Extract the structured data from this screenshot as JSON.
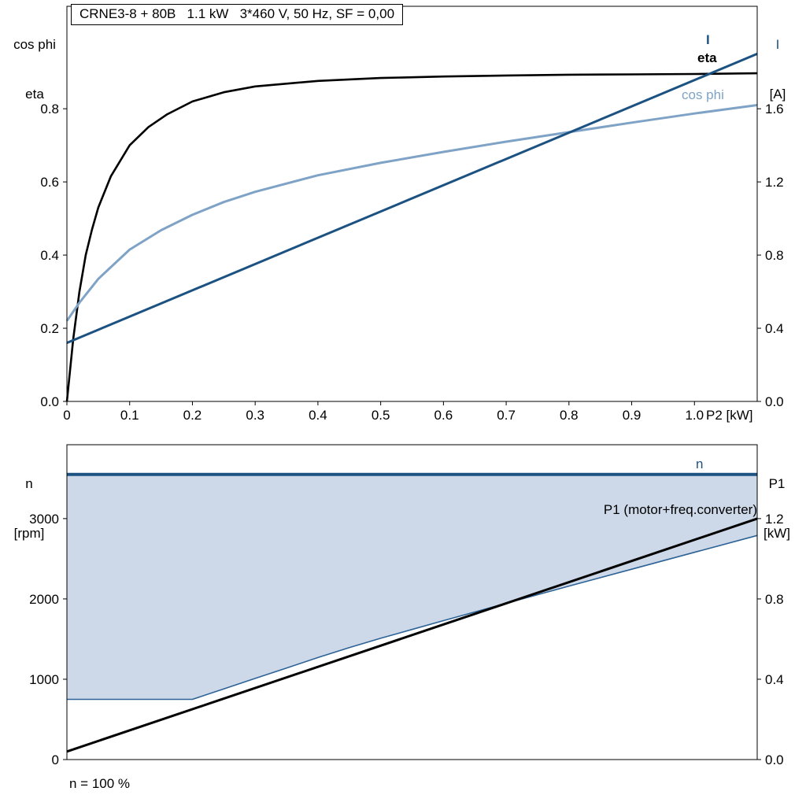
{
  "header": {
    "title_box": "CRNE3-8 + 80B   1.1 kW   3*460 V, 50 Hz, SF = 0,00"
  },
  "colors": {
    "dark_blue": "#1c5282",
    "light_blue": "#7fa3c6",
    "fill_blue": "#cdd9e8",
    "black": "#000000"
  },
  "labels": {
    "top_left_line1": "cos phi",
    "top_left_line2": "eta",
    "top_right_line1": "I",
    "top_right_line2": "[A]",
    "x_axis_label": "P2 [kW]",
    "curve_I": "I",
    "curve_eta": "eta",
    "curve_cosphi": "cos phi",
    "bottom_left_line1": "n",
    "bottom_left_line2": "[rpm]",
    "bottom_right_line1": "P1",
    "bottom_right_line2": "[kW]",
    "curve_n": "n",
    "curve_P1": "P1 (motor+freq.converter)",
    "footnote": "n = 100 %"
  },
  "chart_data": [
    {
      "type": "line",
      "title": "CRNE3-8 + 80B   1.1 kW   3*460 V, 50 Hz, SF = 0,00",
      "xlabel": "P2 [kW]",
      "ylabel_left": "cos phi / eta",
      "ylabel_right": "I [A]",
      "xlim": [
        0,
        1.1
      ],
      "ylim_left": [
        0,
        1.08
      ],
      "ylim_right": [
        0,
        2.16
      ],
      "grid": false,
      "legend_position": "curve-end-labels",
      "x_ticks": [
        {
          "v": 0,
          "t": "0"
        },
        {
          "v": 0.1,
          "t": "0.1"
        },
        {
          "v": 0.2,
          "t": "0.2"
        },
        {
          "v": 0.3,
          "t": "0.3"
        },
        {
          "v": 0.4,
          "t": "0.4"
        },
        {
          "v": 0.5,
          "t": "0.5"
        },
        {
          "v": 0.6,
          "t": "0.6"
        },
        {
          "v": 0.7,
          "t": "0.7"
        },
        {
          "v": 0.8,
          "t": "0.8"
        },
        {
          "v": 0.9,
          "t": "0.9"
        },
        {
          "v": 1.0,
          "t": "1.0"
        }
      ],
      "y_ticks_left": [
        {
          "v": 0,
          "t": "0.0"
        },
        {
          "v": 0.2,
          "t": "0.2"
        },
        {
          "v": 0.4,
          "t": "0.4"
        },
        {
          "v": 0.6,
          "t": "0.6"
        },
        {
          "v": 0.8,
          "t": "0.8"
        }
      ],
      "y_ticks_right": [
        {
          "v": 0,
          "t": "0.0"
        },
        {
          "v": 0.4,
          "t": "0.4"
        },
        {
          "v": 0.8,
          "t": "0.8"
        },
        {
          "v": 1.2,
          "t": "1.2"
        },
        {
          "v": 1.6,
          "t": "1.6"
        }
      ],
      "series": [
        {
          "name": "eta",
          "axis": "left",
          "color": "#000000",
          "width": 2.6,
          "x": [
            0,
            0.01,
            0.02,
            0.03,
            0.04,
            0.05,
            0.07,
            0.1,
            0.13,
            0.16,
            0.2,
            0.25,
            0.3,
            0.4,
            0.5,
            0.6,
            0.7,
            0.8,
            0.9,
            1.0,
            1.1
          ],
          "y": [
            0,
            0.17,
            0.3,
            0.4,
            0.47,
            0.53,
            0.615,
            0.7,
            0.75,
            0.785,
            0.82,
            0.845,
            0.861,
            0.876,
            0.884,
            0.888,
            0.891,
            0.893,
            0.894,
            0.895,
            0.897
          ]
        },
        {
          "name": "cos phi",
          "axis": "left",
          "color": "#7fa3c6",
          "width": 3,
          "x": [
            0,
            0.02,
            0.05,
            0.1,
            0.15,
            0.2,
            0.25,
            0.3,
            0.4,
            0.5,
            0.6,
            0.7,
            0.8,
            0.9,
            1.0,
            1.1
          ],
          "y": [
            0.22,
            0.27,
            0.335,
            0.415,
            0.468,
            0.51,
            0.545,
            0.573,
            0.618,
            0.652,
            0.682,
            0.71,
            0.736,
            0.762,
            0.787,
            0.81
          ]
        },
        {
          "name": "I",
          "axis": "right",
          "color": "#1c5282",
          "width": 3,
          "x": [
            0,
            1.1
          ],
          "y": [
            0.32,
            1.9
          ]
        }
      ]
    },
    {
      "type": "line",
      "title": "",
      "xlabel": "",
      "ylabel_left": "n [rpm]",
      "ylabel_right": "P1 [kW]",
      "xlim": [
        0,
        1.1
      ],
      "ylim_left": [
        0,
        3920
      ],
      "ylim_right": [
        0,
        1.568
      ],
      "grid": false,
      "footnote": "n = 100 %",
      "y_ticks_left": [
        {
          "v": 0,
          "t": "0"
        },
        {
          "v": 1000,
          "t": "1000"
        },
        {
          "v": 2000,
          "t": "2000"
        },
        {
          "v": 3000,
          "t": "3000"
        }
      ],
      "y_ticks_right": [
        {
          "v": 0,
          "t": "0.0"
        },
        {
          "v": 0.4,
          "t": "0.4"
        },
        {
          "v": 0.8,
          "t": "0.8"
        },
        {
          "v": 1.2,
          "t": "1.2"
        }
      ],
      "band": {
        "description": "speed operating range fill between n max and n min",
        "top": 3550,
        "fill": "#cdd9e8",
        "lower_x": [
          0,
          0.2,
          0.25,
          0.3,
          0.35,
          0.4,
          0.45,
          0.5,
          0.55,
          0.6,
          0.7,
          0.8,
          0.9,
          1.0,
          1.1
        ],
        "lower_y": [
          750,
          750,
          880,
          1010,
          1140,
          1270,
          1395,
          1510,
          1620,
          1730,
          1945,
          2160,
          2370,
          2580,
          2790
        ]
      },
      "series": [
        {
          "name": "n min boundary",
          "axis": "left",
          "color": "#2d6296",
          "width": 1.6,
          "x": [
            0,
            0.2,
            0.25,
            0.3,
            0.35,
            0.4,
            0.45,
            0.5,
            0.55,
            0.6,
            0.7,
            0.8,
            0.9,
            1.0,
            1.1
          ],
          "y": [
            750,
            750,
            880,
            1010,
            1140,
            1270,
            1395,
            1510,
            1620,
            1730,
            1945,
            2160,
            2370,
            2580,
            2790
          ]
        },
        {
          "name": "n",
          "axis": "left",
          "color": "#1c5282",
          "width": 4,
          "x": [
            0,
            1.1
          ],
          "y": [
            3550,
            3550
          ]
        },
        {
          "name": "P1 (motor+freq.converter)",
          "axis": "right",
          "color": "#000000",
          "width": 3,
          "x": [
            0,
            1.1
          ],
          "y": [
            0.04,
            1.2
          ]
        }
      ]
    }
  ]
}
